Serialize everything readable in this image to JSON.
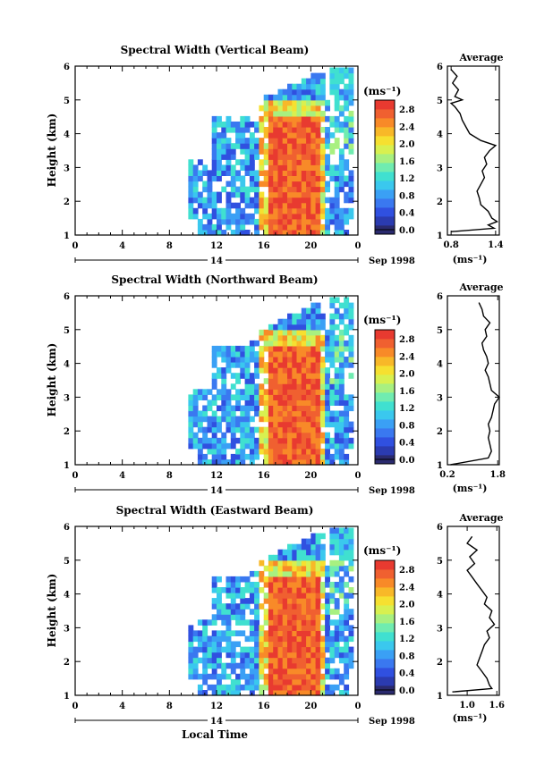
{
  "colorbar": {
    "unit": "(ms⁻¹)",
    "ticks": [
      "0.0",
      "0.4",
      "0.8",
      "1.2",
      "1.6",
      "2.0",
      "2.4",
      "2.8"
    ],
    "ticks_panel1": [
      "0.0",
      "0.4",
      "0.8",
      "1.2",
      "1.6",
      "2.0",
      "2.4",
      "2.8"
    ],
    "colors": [
      "#2a2a6e",
      "#2b3bb0",
      "#3050e0",
      "#3a78f0",
      "#3aa0f5",
      "#3ac8ee",
      "#40e0d0",
      "#70ecb0",
      "#a8f080",
      "#d8f050",
      "#f6e030",
      "#f8b828",
      "#f88a28",
      "#f06030",
      "#e83a30"
    ]
  },
  "chart_data": [
    {
      "type": "heatmap",
      "title": "Spectral Width (Vertical Beam)",
      "xlabel": "",
      "ylabel": "Height (km)",
      "xlim": [
        0,
        24
      ],
      "ylim": [
        1,
        6
      ],
      "xticks": [
        "0",
        "4",
        "8",
        "12",
        "16",
        "20",
        "0"
      ],
      "yticks": [
        "1",
        "2",
        "3",
        "4",
        "5",
        "6"
      ],
      "date_label": "14",
      "date_suffix": "Sep 1998",
      "colorbar_ticks": [
        "0.0",
        "0.4",
        "0.8",
        "1.2",
        "1.6",
        "2.0",
        "2.4",
        "2.8"
      ],
      "profile": {
        "title": "Average",
        "xlabel": "(ms⁻¹)",
        "xticks": [
          "0.8",
          "1.4"
        ],
        "xlim": [
          0.75,
          1.45
        ],
        "ylim": [
          1,
          6
        ],
        "yticks": [
          "1",
          "2",
          "3",
          "4",
          "5",
          "6"
        ],
        "heights": [
          1.1,
          1.2,
          1.3,
          1.4,
          1.5,
          1.7,
          1.9,
          2.1,
          2.3,
          2.5,
          2.7,
          2.9,
          3.1,
          3.3,
          3.5,
          3.65,
          3.8,
          4.0,
          4.2,
          4.4,
          4.6,
          4.8,
          4.9,
          5.0,
          5.1,
          5.3,
          5.5,
          5.7,
          5.9
        ],
        "values": [
          0.8,
          1.38,
          1.3,
          1.42,
          1.35,
          1.3,
          1.2,
          1.18,
          1.15,
          1.2,
          1.25,
          1.22,
          1.28,
          1.25,
          1.32,
          1.4,
          1.2,
          1.05,
          1.0,
          0.95,
          0.92,
          0.85,
          0.8,
          0.95,
          0.85,
          0.9,
          0.82,
          0.88,
          0.8
        ]
      }
    },
    {
      "type": "heatmap",
      "title": "Spectral Width (Northward Beam)",
      "xlabel": "",
      "ylabel": "Height (km)",
      "xlim": [
        0,
        24
      ],
      "ylim": [
        1,
        6
      ],
      "xticks": [
        "0",
        "4",
        "8",
        "12",
        "16",
        "20",
        "0"
      ],
      "yticks": [
        "1",
        "2",
        "3",
        "4",
        "5",
        "6"
      ],
      "date_label": "14",
      "date_suffix": "Sep 1998",
      "colorbar_ticks": [
        "0.0",
        "0.4",
        "0.8",
        "1.2",
        "1.6",
        "2.0",
        "2.4",
        "2.8"
      ],
      "profile": {
        "title": "Average",
        "xlabel": "(ms⁻¹)",
        "xticks": [
          "0.2",
          "1.8"
        ],
        "xlim": [
          0.2,
          1.85
        ],
        "ylim": [
          1,
          6
        ],
        "yticks": [
          "1",
          "2",
          "3",
          "4",
          "5",
          "6"
        ],
        "heights": [
          1.0,
          1.2,
          1.4,
          1.6,
          1.8,
          2.0,
          2.2,
          2.4,
          2.6,
          2.8,
          3.0,
          3.2,
          3.4,
          3.6,
          3.8,
          4.0,
          4.2,
          4.4,
          4.6,
          4.8,
          5.0,
          5.2,
          5.4,
          5.6,
          5.8
        ],
        "values": [
          0.3,
          1.5,
          1.6,
          1.55,
          1.5,
          1.55,
          1.5,
          1.6,
          1.65,
          1.7,
          1.85,
          1.6,
          1.55,
          1.5,
          1.4,
          1.5,
          1.45,
          1.35,
          1.3,
          1.45,
          1.4,
          1.55,
          1.35,
          1.3,
          1.2
        ]
      }
    },
    {
      "type": "heatmap",
      "title": "Spectral Width (Eastward Beam)",
      "xlabel": "Local Time",
      "ylabel": "Height (km)",
      "xlim": [
        0,
        24
      ],
      "ylim": [
        1,
        6
      ],
      "xticks": [
        "0",
        "4",
        "8",
        "12",
        "16",
        "20",
        "0"
      ],
      "yticks": [
        "1",
        "2",
        "3",
        "4",
        "5",
        "6"
      ],
      "date_label": "14",
      "date_suffix": "Sep 1998",
      "colorbar_ticks": [
        "0.0",
        "0.4",
        "0.8",
        "1.2",
        "1.6",
        "2.0",
        "2.4",
        "2.8"
      ],
      "profile": {
        "title": "Average",
        "xlabel": "(ms⁻¹)",
        "xticks": [
          "1.0",
          "1.6"
        ],
        "xlim": [
          0.6,
          1.65
        ],
        "ylim": [
          1,
          6
        ],
        "yticks": [
          "1",
          "2",
          "3",
          "4",
          "5",
          "6"
        ],
        "heights": [
          1.1,
          1.2,
          1.3,
          1.5,
          1.7,
          1.9,
          2.1,
          2.3,
          2.5,
          2.7,
          2.9,
          3.1,
          3.3,
          3.5,
          3.7,
          3.9,
          4.1,
          4.3,
          4.5,
          4.7,
          4.9,
          5.1,
          5.3,
          5.5,
          5.7
        ],
        "values": [
          0.7,
          1.5,
          1.45,
          1.4,
          1.3,
          1.2,
          1.25,
          1.3,
          1.35,
          1.45,
          1.4,
          1.55,
          1.45,
          1.5,
          1.35,
          1.4,
          1.3,
          1.2,
          1.1,
          1.0,
          1.15,
          1.05,
          1.2,
          1.0,
          1.1
        ]
      }
    }
  ]
}
